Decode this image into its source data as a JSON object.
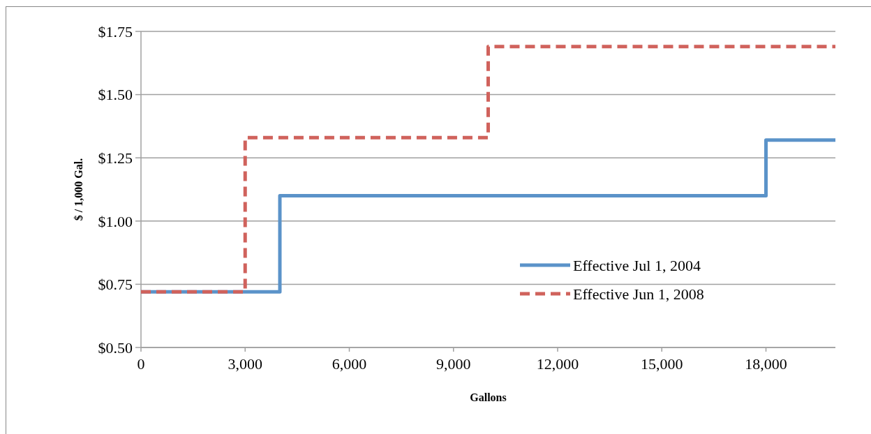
{
  "chart_data": {
    "type": "step",
    "xlabel": "Gallons",
    "ylabel": "$ / 1,000 Gal.",
    "xlim": [
      0,
      20000
    ],
    "xticks": [
      {
        "value": 0,
        "label": "0"
      },
      {
        "value": 3000,
        "label": "3,000"
      },
      {
        "value": 6000,
        "label": "6,000"
      },
      {
        "value": 9000,
        "label": "9,000"
      },
      {
        "value": 12000,
        "label": "12,000"
      },
      {
        "value": 15000,
        "label": "15,000"
      },
      {
        "value": 18000,
        "label": "18,000"
      }
    ],
    "ylim": [
      0.5,
      1.75
    ],
    "yticks": [
      {
        "value": 0.5,
        "label": "$0.50"
      },
      {
        "value": 0.75,
        "label": "$0.75"
      },
      {
        "value": 1.0,
        "label": "$1.00"
      },
      {
        "value": 1.25,
        "label": "$1.25"
      },
      {
        "value": 1.5,
        "label": "$1.50"
      },
      {
        "value": 1.75,
        "label": "$1.75"
      }
    ],
    "grid": "y",
    "legend": "right",
    "series": [
      {
        "name": "Effective Jul 1, 2004",
        "color": "#5b93c9",
        "line_style": "solid",
        "x": [
          0,
          4000,
          18000,
          20000
        ],
        "values": [
          0.72,
          1.1,
          1.32,
          1.32
        ]
      },
      {
        "name": "Effective Jun 1, 2008",
        "color": "#d0625c",
        "line_style": "dashed",
        "x": [
          0,
          3000,
          10000,
          20000
        ],
        "values": [
          0.72,
          1.33,
          1.69,
          1.69
        ]
      }
    ]
  }
}
